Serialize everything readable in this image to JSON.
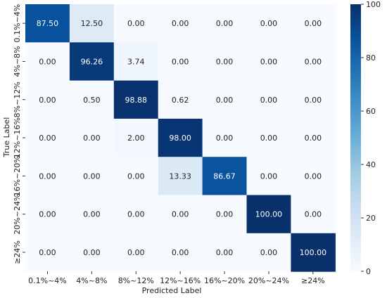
{
  "chart_data": {
    "type": "heatmap",
    "title": "",
    "xlabel": "Predicted Label",
    "ylabel": "True Label",
    "row_labels": [
      "0.1%~4%",
      "4%~8%",
      "8%~12%",
      "12%~16%",
      "16%~20%",
      "20%~24%",
      "≥24%"
    ],
    "col_labels": [
      "0.1%~4%",
      "4%~8%",
      "8%~12%",
      "12%~16%",
      "16%~20%",
      "20%~24%",
      "≥24%"
    ],
    "values": [
      [
        87.5,
        12.5,
        0.0,
        0.0,
        0.0,
        0.0,
        0.0
      ],
      [
        0.0,
        96.26,
        3.74,
        0.0,
        0.0,
        0.0,
        0.0
      ],
      [
        0.0,
        0.5,
        98.88,
        0.62,
        0.0,
        0.0,
        0.0
      ],
      [
        0.0,
        0.0,
        2.0,
        98.0,
        0.0,
        0.0,
        0.0
      ],
      [
        0.0,
        0.0,
        0.0,
        13.33,
        86.67,
        0.0,
        0.0
      ],
      [
        0.0,
        0.0,
        0.0,
        0.0,
        0.0,
        100.0,
        0.0
      ],
      [
        0.0,
        0.0,
        0.0,
        0.0,
        0.0,
        0.0,
        100.0
      ]
    ],
    "value_format": "0.00",
    "colormap": "Blues",
    "colorbar": {
      "range": [
        0,
        100
      ],
      "ticks": [
        0,
        20,
        40,
        60,
        80,
        100
      ]
    }
  }
}
